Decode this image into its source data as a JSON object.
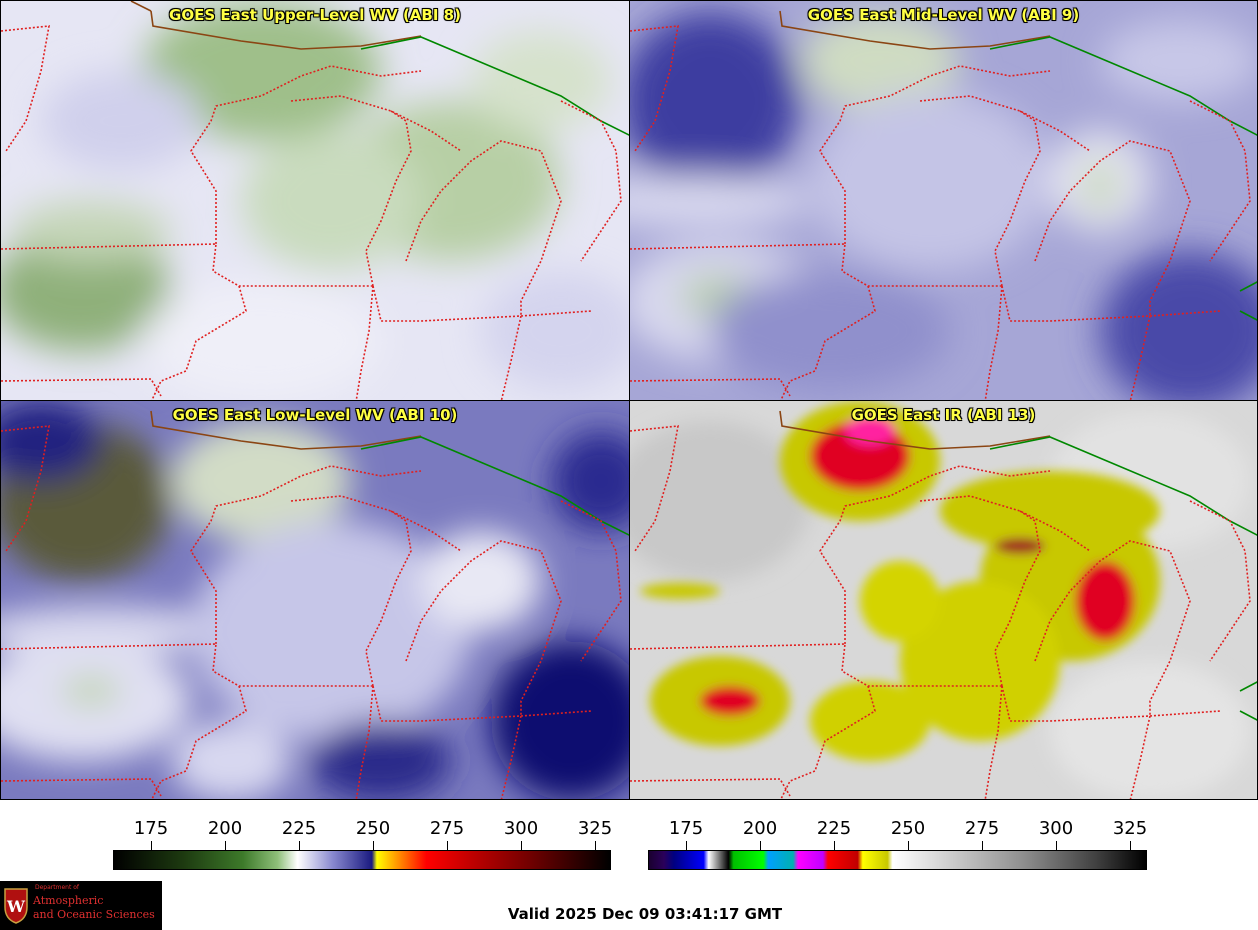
{
  "panels": [
    {
      "title": "GOES East Upper-Level WV (ABI 8)",
      "style": "upper"
    },
    {
      "title": "GOES East Mid-Level WV (ABI 9)",
      "style": "mid"
    },
    {
      "title": "GOES East Low-Level WV (ABI 10)",
      "style": "low"
    },
    {
      "title": "GOES East IR (ABI 13)",
      "style": "ir"
    }
  ],
  "colorbars": {
    "wv": {
      "ticks": [
        "175",
        "200",
        "225",
        "250",
        "275",
        "300",
        "325"
      ]
    },
    "ir": {
      "ticks": [
        "175",
        "200",
        "225",
        "250",
        "275",
        "300",
        "325"
      ]
    }
  },
  "logo": {
    "dept": "Department of",
    "line1": "Atmospheric",
    "line2": "and Oceanic Sciences"
  },
  "valid_time": "Valid 2025 Dec 09 03:41:17 GMT",
  "colors": {
    "state_borders": "#e02020",
    "canada_border": "#8b4513",
    "country_green": "#008800",
    "title_text": "#ffff44"
  }
}
